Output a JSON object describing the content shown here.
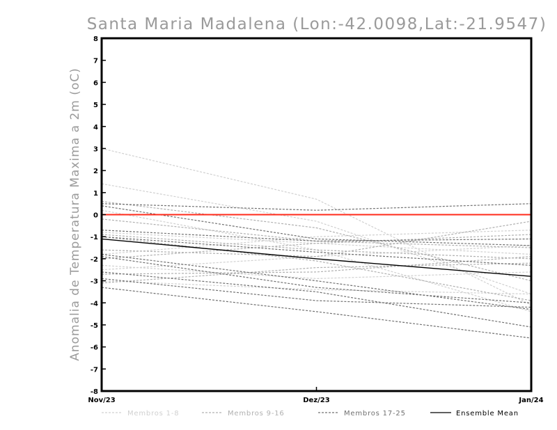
{
  "chart_data": {
    "type": "line",
    "title": "Santa Maria Madalena (Lon:-42.0098,Lat:-21.9547)",
    "ylabel": "Anomalia de Temperatura Maxima a 2m (oC)",
    "xlabel": "",
    "categories": [
      "Nov/23",
      "Dez/23",
      "Jan/24"
    ],
    "ylim": [
      -8,
      8
    ],
    "yticks": [
      8,
      7,
      6,
      5,
      4,
      3,
      2,
      1,
      0,
      -1,
      -2,
      -3,
      -4,
      -5,
      -6,
      -7,
      -8
    ],
    "ytick_labels": [
      "8",
      "7",
      "6",
      "5",
      "4",
      "3",
      "2",
      "1",
      "0",
      "-1",
      "-2",
      "-3",
      "-4",
      "-5",
      "-6",
      "-7",
      "-8"
    ],
    "grid": false,
    "legend_position": "bottom",
    "reference_line": {
      "value": 0,
      "color": "#ff2a1a"
    },
    "groups": [
      {
        "name": "Membros 1-8",
        "color": "#d0d0d0",
        "dashed": true
      },
      {
        "name": "Membros 9-16",
        "color": "#b0b0b0",
        "dashed": true
      },
      {
        "name": "Membros 17-25",
        "color": "#707070",
        "dashed": true
      },
      {
        "name": "Ensemble Mean",
        "color": "#000000",
        "dashed": false
      }
    ],
    "series": [
      {
        "group": 0,
        "values": [
          3.0,
          0.7,
          -4.1
        ]
      },
      {
        "group": 0,
        "values": [
          1.4,
          -0.3,
          -3.6
        ]
      },
      {
        "group": 0,
        "values": [
          0.2,
          -1.6,
          -4.4
        ]
      },
      {
        "group": 0,
        "values": [
          -0.8,
          -1.3,
          -1.8
        ]
      },
      {
        "group": 0,
        "values": [
          -2.3,
          -2.9,
          -2.6
        ]
      },
      {
        "group": 0,
        "values": [
          -2.5,
          -1.9,
          -1.4
        ]
      },
      {
        "group": 0,
        "values": [
          -1.8,
          -1.0,
          -0.7
        ]
      },
      {
        "group": 0,
        "values": [
          -3.0,
          -3.4,
          -3.6
        ]
      },
      {
        "group": 1,
        "values": [
          0.6,
          -0.6,
          -3.0
        ]
      },
      {
        "group": 1,
        "values": [
          -0.2,
          -1.2,
          -1.5
        ]
      },
      {
        "group": 1,
        "values": [
          -1.0,
          -2.1,
          -3.9
        ]
      },
      {
        "group": 1,
        "values": [
          -1.6,
          -1.9,
          -0.3
        ]
      },
      {
        "group": 1,
        "values": [
          -2.7,
          -2.6,
          -1.9
        ]
      },
      {
        "group": 1,
        "values": [
          -0.9,
          -1.6,
          -2.0
        ]
      },
      {
        "group": 1,
        "values": [
          -2.0,
          -1.3,
          -0.9
        ]
      },
      {
        "group": 1,
        "values": [
          -3.1,
          -2.4,
          -2.2
        ]
      },
      {
        "group": 2,
        "values": [
          0.5,
          0.2,
          0.5
        ]
      },
      {
        "group": 2,
        "values": [
          0.4,
          -1.1,
          -1.4
        ]
      },
      {
        "group": 2,
        "values": [
          -0.7,
          -1.2,
          -1.1
        ]
      },
      {
        "group": 2,
        "values": [
          -1.0,
          -1.7,
          -2.3
        ]
      },
      {
        "group": 2,
        "values": [
          -1.8,
          -3.0,
          -4.3
        ]
      },
      {
        "group": 2,
        "values": [
          -2.6,
          -3.5,
          -5.1
        ]
      },
      {
        "group": 2,
        "values": [
          -3.3,
          -4.4,
          -5.6
        ]
      },
      {
        "group": 2,
        "values": [
          -1.9,
          -3.3,
          -4.0
        ]
      },
      {
        "group": 2,
        "values": [
          -2.9,
          -3.9,
          -4.2
        ]
      },
      {
        "group": 3,
        "values": [
          -1.1,
          -2.0,
          -2.8
        ]
      }
    ]
  }
}
